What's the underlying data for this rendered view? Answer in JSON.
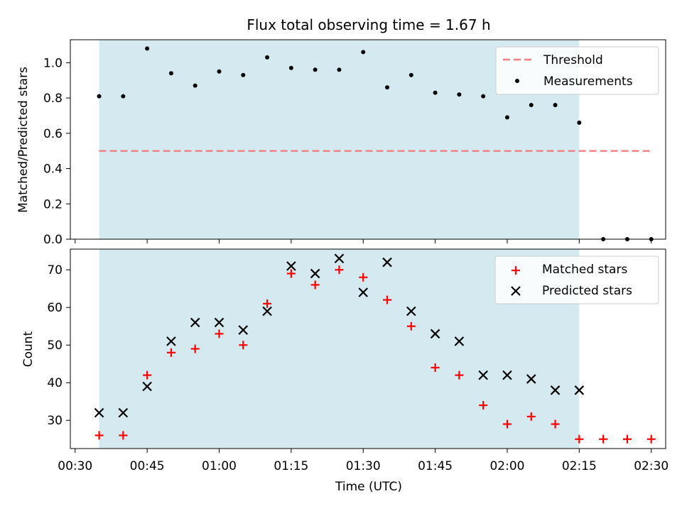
{
  "title": "Flux total observing time = 1.67 h",
  "colors": {
    "shade": "#d4eaf0",
    "threshold": "#f08080",
    "matched": "#ff0000",
    "predicted": "#000000",
    "measurement": "#000000"
  },
  "chart_data": [
    {
      "type": "scatter",
      "ylabel": "Matched/Predicted stars",
      "xlim": [
        "00:29",
        "02:33"
      ],
      "ylim": [
        0.0,
        1.13
      ],
      "yticks": [
        "0.0",
        "0.2",
        "0.4",
        "0.6",
        "0.8",
        "1.0"
      ],
      "shaded_range": [
        "00:35",
        "02:15"
      ],
      "threshold": {
        "name": "Threshold",
        "value": 0.5,
        "x": [
          "00:35",
          "02:30"
        ],
        "style": "dashed"
      },
      "series": [
        {
          "name": "Measurements",
          "marker": "dot",
          "x": [
            "00:35",
            "00:40",
            "00:45",
            "00:50",
            "00:55",
            "01:00",
            "01:05",
            "01:10",
            "01:15",
            "01:20",
            "01:25",
            "01:30",
            "01:35",
            "01:40",
            "01:45",
            "01:50",
            "01:55",
            "02:00",
            "02:05",
            "02:10",
            "02:15",
            "02:20",
            "02:25",
            "02:30"
          ],
          "values": [
            0.81,
            0.81,
            1.08,
            0.94,
            0.87,
            0.95,
            0.93,
            1.03,
            0.97,
            0.96,
            0.96,
            1.06,
            0.86,
            0.93,
            0.83,
            0.82,
            0.81,
            0.69,
            0.76,
            0.76,
            0.66,
            0.0,
            0.0,
            0.0
          ]
        }
      ],
      "legend_position": "top-right"
    },
    {
      "type": "scatter",
      "xlabel": "Time (UTC)",
      "ylabel": "Count",
      "xlim": [
        "00:29",
        "02:33"
      ],
      "ylim": [
        22.5,
        75.5
      ],
      "yticks": [
        "30",
        "40",
        "50",
        "60",
        "70"
      ],
      "xticks": [
        "00:30",
        "00:45",
        "01:00",
        "01:15",
        "01:30",
        "01:45",
        "02:00",
        "02:15",
        "02:30"
      ],
      "shaded_range": [
        "00:35",
        "02:15"
      ],
      "series": [
        {
          "name": "Matched stars",
          "marker": "plus",
          "x": [
            "00:35",
            "00:40",
            "00:45",
            "00:50",
            "00:55",
            "01:00",
            "01:05",
            "01:10",
            "01:15",
            "01:20",
            "01:25",
            "01:30",
            "01:35",
            "01:40",
            "01:45",
            "01:50",
            "01:55",
            "02:00",
            "02:05",
            "02:10",
            "02:15",
            "02:20",
            "02:25",
            "02:30"
          ],
          "values": [
            26,
            26,
            42,
            48,
            49,
            53,
            50,
            61,
            69,
            66,
            70,
            68,
            62,
            55,
            44,
            42,
            34,
            29,
            31,
            29,
            25,
            25,
            25,
            25
          ]
        },
        {
          "name": "Predicted stars",
          "marker": "x",
          "x": [
            "00:35",
            "00:40",
            "00:45",
            "00:50",
            "00:55",
            "01:00",
            "01:05",
            "01:10",
            "01:15",
            "01:20",
            "01:25",
            "01:30",
            "01:35",
            "01:40",
            "01:45",
            "01:50",
            "01:55",
            "02:00",
            "02:05",
            "02:10",
            "02:15"
          ],
          "values": [
            32,
            32,
            39,
            51,
            56,
            56,
            54,
            59,
            71,
            69,
            73,
            64,
            72,
            59,
            53,
            51,
            42,
            42,
            41,
            38,
            38
          ]
        }
      ],
      "legend_position": "top-right"
    }
  ]
}
